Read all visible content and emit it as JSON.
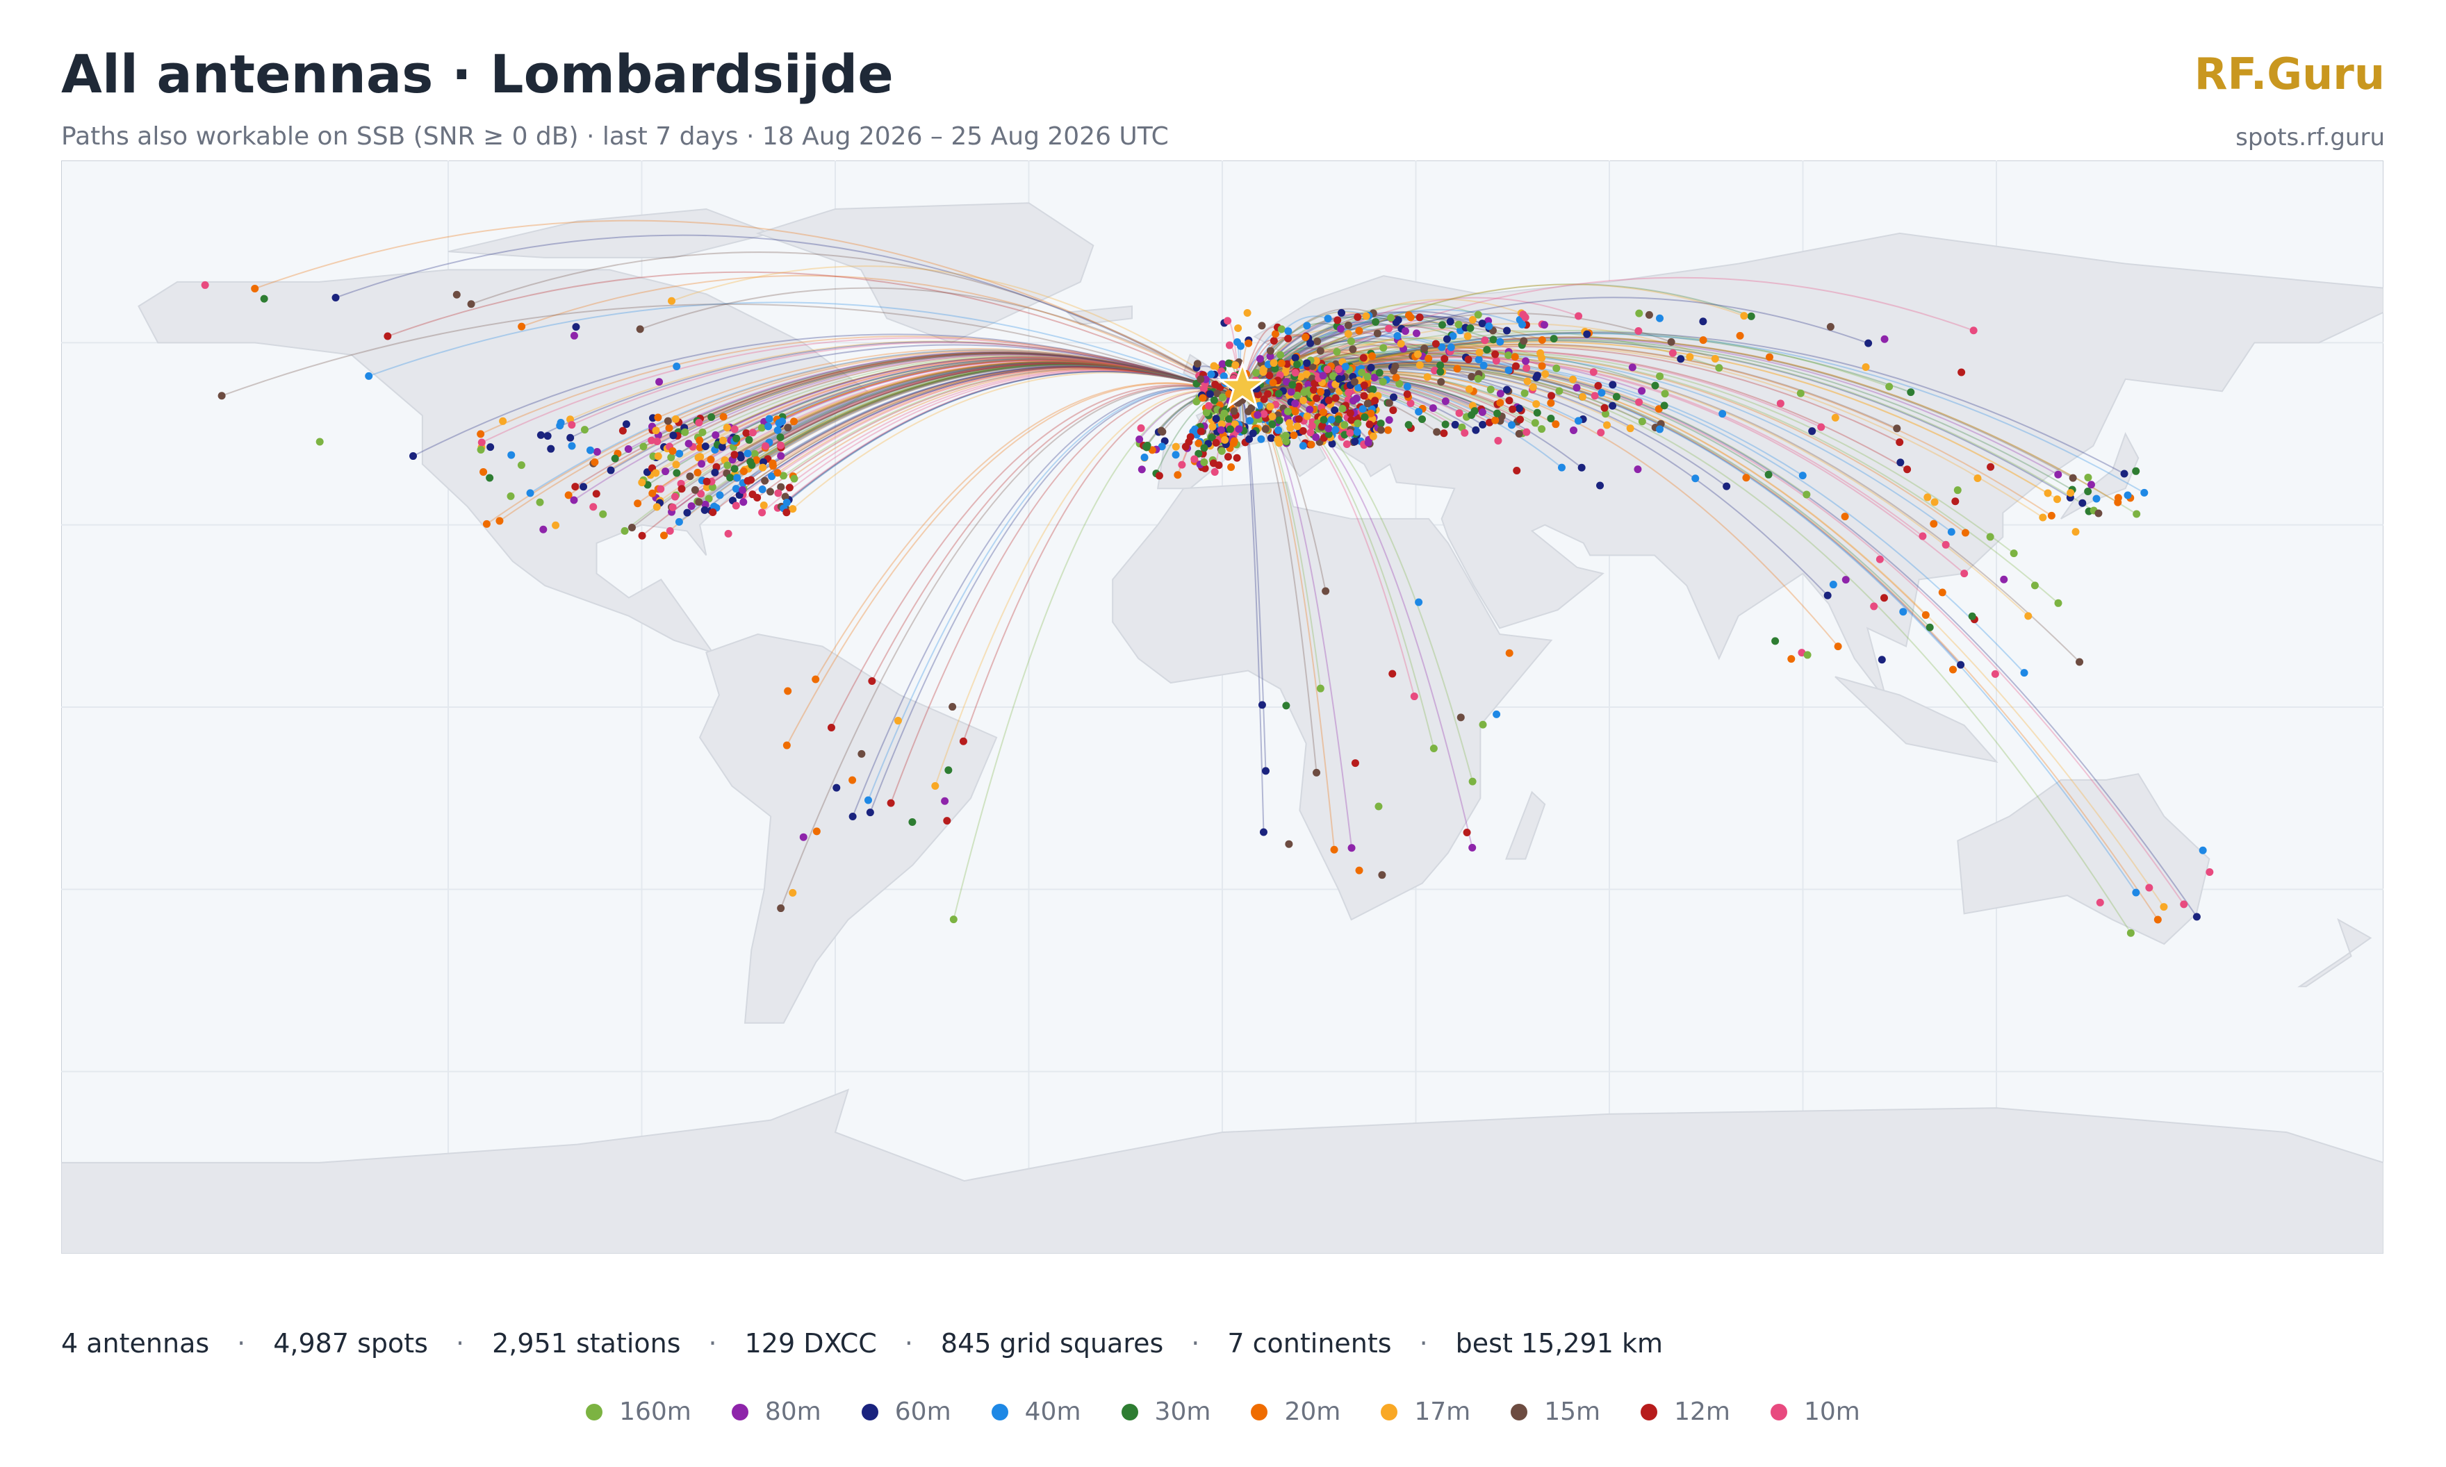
{
  "header": {
    "title": "All antennas · Lombardsijde",
    "subtitle": "Paths also workable on SSB (SNR ≥ 0 dB) · last 7 days · 18 Aug 2026 – 25 Aug 2026 UTC",
    "brand": "RF.Guru",
    "url": "spots.rf.guru"
  },
  "stats": {
    "items": [
      "4 antennas",
      "4,987 spots",
      "2,951 stations",
      "129 DXCC",
      "845 grid squares",
      "7 continents",
      "best 15,291 km"
    ],
    "separator": "·"
  },
  "legend": {
    "bands": [
      {
        "name": "160m",
        "color": "#7cb342"
      },
      {
        "name": "80m",
        "color": "#8e24aa"
      },
      {
        "name": "60m",
        "color": "#1a237e"
      },
      {
        "name": "40m",
        "color": "#1e88e5"
      },
      {
        "name": "30m",
        "color": "#2e7d32"
      },
      {
        "name": "20m",
        "color": "#ef6c00"
      },
      {
        "name": "17m",
        "color": "#f9a825"
      },
      {
        "name": "15m",
        "color": "#6d4c41"
      },
      {
        "name": "12m",
        "color": "#b71c1c"
      },
      {
        "name": "10m",
        "color": "#e84a7f"
      }
    ]
  }
}
